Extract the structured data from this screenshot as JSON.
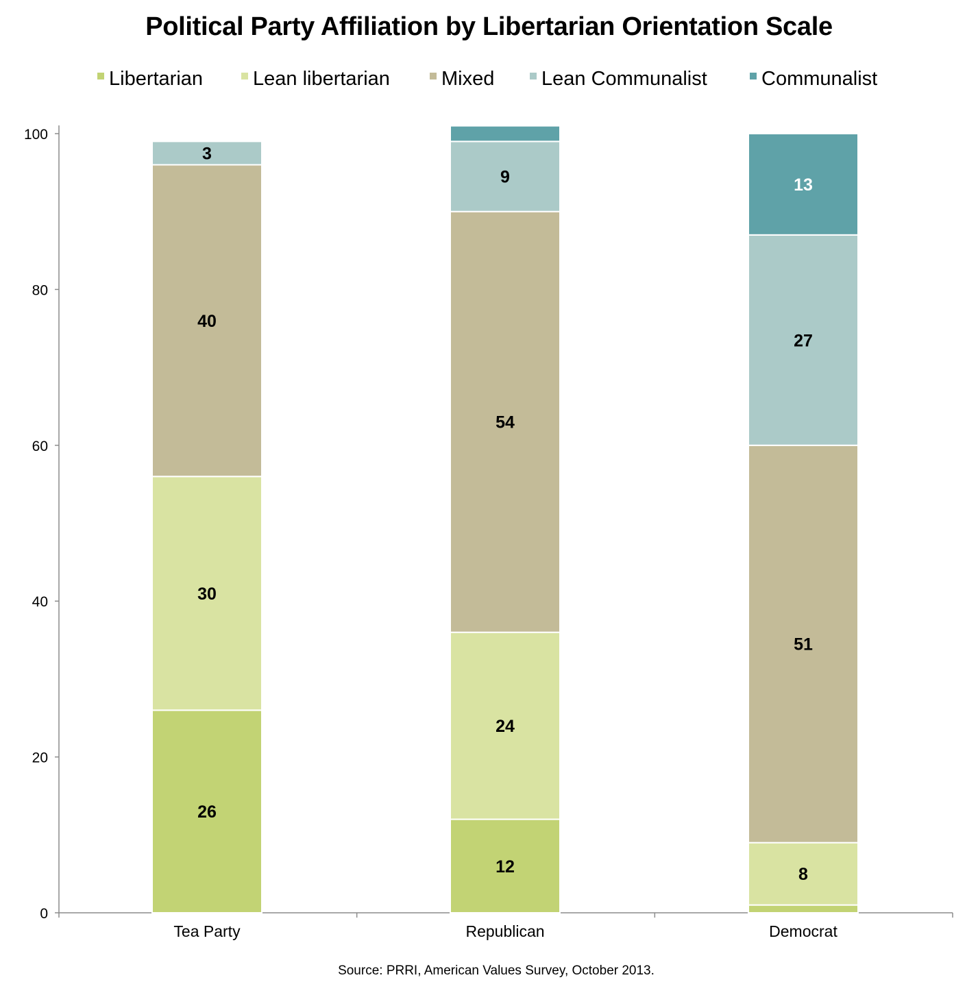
{
  "title": "Political Party Affiliation by Libertarian Orientation Scale",
  "source": "Source: PRRI, American Values Survey, October 2013.",
  "chart_data": {
    "type": "bar",
    "stacked": true,
    "categories": [
      "Tea Party",
      "Republican",
      "Democrat"
    ],
    "series": [
      {
        "name": "Libertarian",
        "color": "#c2d374",
        "values": [
          26,
          12,
          1
        ],
        "labels": [
          "26",
          "12",
          ""
        ]
      },
      {
        "name": "Lean libertarian",
        "color": "#d9e3a2",
        "values": [
          30,
          24,
          8
        ],
        "labels": [
          "30",
          "24",
          "8"
        ]
      },
      {
        "name": "Mixed",
        "color": "#c3bb98",
        "values": [
          40,
          54,
          51
        ],
        "labels": [
          "40",
          "54",
          "51"
        ]
      },
      {
        "name": "Lean Communalist",
        "color": "#abcac8",
        "values": [
          3,
          9,
          27
        ],
        "labels": [
          "3",
          "9",
          "27"
        ]
      },
      {
        "name": "Communalist",
        "color": "#5fa2a8",
        "values": [
          0,
          2,
          13
        ],
        "labels": [
          "",
          "",
          "13"
        ]
      }
    ],
    "label_colors": [
      "#000000",
      "#000000",
      "#000000",
      "#000000",
      "#ffffff"
    ],
    "ylim": [
      0,
      100
    ],
    "yticks": [
      "0",
      "20",
      "40",
      "60",
      "80",
      "100"
    ],
    "legend_position": "top",
    "grid": false
  }
}
